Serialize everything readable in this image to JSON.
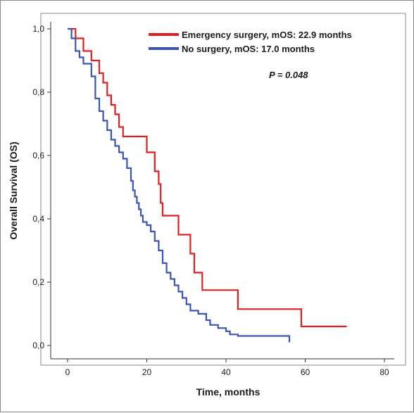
{
  "chart_data": {
    "type": "line",
    "step": true,
    "xlabel": "Time, months",
    "ylabel": "Overall Survival (OS)",
    "xlim": [
      0,
      80
    ],
    "ylim": [
      0,
      1
    ],
    "xticks": [
      0,
      20,
      40,
      60,
      80
    ],
    "yticks": [
      0.0,
      0.2,
      0.4,
      0.6,
      0.8,
      1.0
    ],
    "xtick_labels": [
      "0",
      "20",
      "40",
      "60",
      "80"
    ],
    "ytick_labels": [
      "0,0",
      "0,2",
      "0,4",
      "0,6",
      "0,8",
      "1,0"
    ],
    "grid": false,
    "legend_position": "top-right",
    "annotation": "P = 0.048",
    "series": [
      {
        "name": "Emergency surgery, mOS: 22.9 months",
        "color": "#e02020",
        "x": [
          0,
          2,
          4,
          6,
          8,
          9,
          10,
          11,
          12,
          13,
          14,
          15,
          20,
          22,
          23,
          23.5,
          24,
          28,
          31,
          32,
          34,
          43,
          59,
          70.5
        ],
        "y": [
          1.0,
          0.97,
          0.93,
          0.9,
          0.86,
          0.83,
          0.79,
          0.76,
          0.73,
          0.69,
          0.66,
          0.66,
          0.61,
          0.55,
          0.51,
          0.45,
          0.41,
          0.35,
          0.29,
          0.23,
          0.175,
          0.115,
          0.06,
          0.06
        ]
      },
      {
        "name": "No surgery, mOS: 17.0 months",
        "color": "#3a55b4",
        "x": [
          0,
          1,
          2,
          3,
          4,
          5,
          6,
          7,
          8,
          9,
          10,
          11,
          12,
          13,
          14,
          15,
          16,
          16.5,
          17,
          17.5,
          18,
          18.5,
          19,
          20,
          21,
          22,
          23,
          24,
          25,
          26,
          27,
          28,
          29,
          30,
          31,
          33,
          35,
          36,
          38,
          40,
          41,
          43,
          44,
          56
        ],
        "y": [
          1.0,
          0.97,
          0.93,
          0.91,
          0.89,
          0.89,
          0.85,
          0.78,
          0.74,
          0.71,
          0.68,
          0.65,
          0.63,
          0.61,
          0.59,
          0.56,
          0.52,
          0.49,
          0.47,
          0.45,
          0.43,
          0.41,
          0.39,
          0.38,
          0.36,
          0.33,
          0.3,
          0.26,
          0.23,
          0.21,
          0.19,
          0.17,
          0.15,
          0.13,
          0.11,
          0.1,
          0.08,
          0.065,
          0.055,
          0.045,
          0.035,
          0.03,
          0.03,
          0.01
        ]
      }
    ]
  }
}
